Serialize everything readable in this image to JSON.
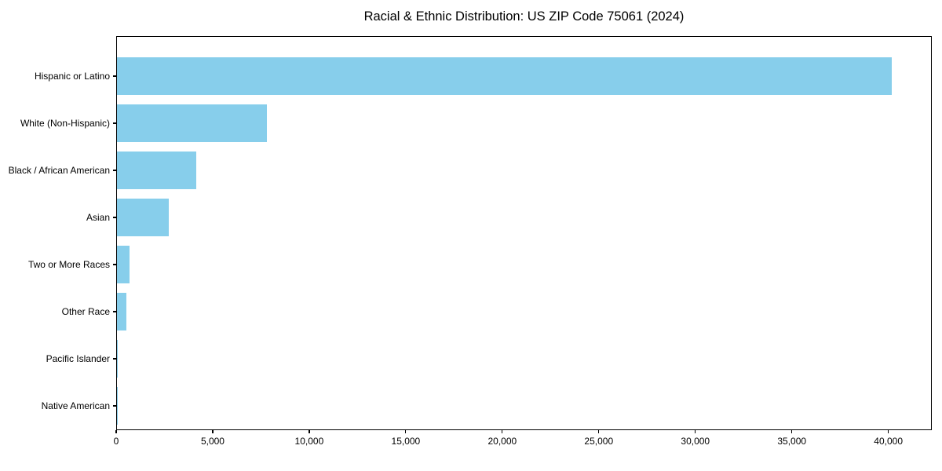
{
  "page": {
    "background": "#ffffff"
  },
  "chart_data": {
    "type": "bar",
    "orientation": "horizontal",
    "title": "Racial & Ethnic Distribution: US ZIP Code 75061 (2024)",
    "categories": [
      "Hispanic or Latino",
      "White (Non-Hispanic)",
      "Black / African American",
      "Asian",
      "Two or More Races",
      "Other Race",
      "Pacific Islander",
      "Native American"
    ],
    "values": [
      40200,
      7800,
      4100,
      2700,
      650,
      500,
      20,
      10
    ],
    "xlabel": "",
    "ylabel": "",
    "xlim": [
      0,
      42250
    ],
    "xticks": [
      0,
      5000,
      10000,
      15000,
      20000,
      25000,
      30000,
      35000,
      40000
    ],
    "xtick_labels": [
      "0",
      "5,000",
      "10,000",
      "15,000",
      "20,000",
      "25,000",
      "30,000",
      "35,000",
      "40,000"
    ],
    "bar_color": "#87CEEB",
    "axis_color": "#000000",
    "text_color": "#000000",
    "grid": false,
    "legend": null
  }
}
